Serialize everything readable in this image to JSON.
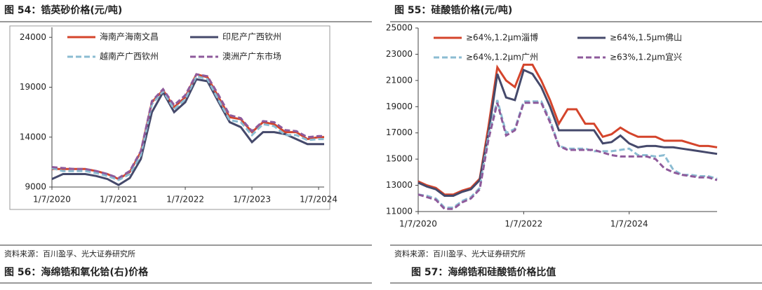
{
  "chart_data": [
    {
      "type": "line",
      "title": "图 54：锆英砂价格(元/吨)",
      "x": [
        "2020-01",
        "2020-03",
        "2020-05",
        "2020-07",
        "2020-09",
        "2020-11",
        "2021-01",
        "2021-03",
        "2021-05",
        "2021-07",
        "2021-09",
        "2021-11",
        "2022-01",
        "2022-03",
        "2022-05",
        "2022-07",
        "2022-09",
        "2022-11",
        "2023-01",
        "2023-03",
        "2023-05",
        "2023-07",
        "2023-09",
        "2023-11",
        "2024-01",
        "2024-02"
      ],
      "xlim": [
        "2020-01",
        "2024-02"
      ],
      "xticks": [
        {
          "value": "2020-01",
          "label": "1/7/2020"
        },
        {
          "value": "2021-01",
          "label": "1/7/2021"
        },
        {
          "value": "2022-01",
          "label": "1/7/2022"
        },
        {
          "value": "2023-01",
          "label": "1/7/2023"
        },
        {
          "value": "2024-01",
          "label": "1/7/2024"
        }
      ],
      "ylim": [
        9000,
        25000
      ],
      "yticks": [
        9000,
        14000,
        19000,
        24000
      ],
      "legend": "upper left",
      "series": [
        {
          "name": "海南产海南文昌",
          "color": "#d4442b",
          "line_style": "solid",
          "values": [
            10800,
            10800,
            10800,
            10800,
            10600,
            10300,
            9800,
            10500,
            12500,
            17500,
            18700,
            17000,
            18000,
            20300,
            20000,
            18000,
            16000,
            15800,
            14500,
            15500,
            15300,
            14500,
            14500,
            13800,
            14000,
            14000
          ]
        },
        {
          "name": "印尼产广西钦州",
          "color": "#45496b",
          "line_style": "solid",
          "values": [
            9800,
            10300,
            10300,
            10300,
            10100,
            9800,
            9200,
            9900,
            11800,
            16500,
            18500,
            16500,
            17500,
            19800,
            19600,
            17500,
            15500,
            15000,
            13500,
            14500,
            14500,
            14300,
            13800,
            13300,
            13300,
            13300
          ]
        },
        {
          "name": "越南产广西钦州",
          "color": "#8bbcd2",
          "line_style": "dashed",
          "values": [
            10900,
            10600,
            10600,
            10600,
            10400,
            10100,
            9700,
            10300,
            12200,
            17300,
            18600,
            16800,
            17800,
            20100,
            19800,
            17700,
            15700,
            15500,
            14200,
            15300,
            15100,
            14200,
            14200,
            13700,
            13800,
            13800
          ]
        },
        {
          "name": "澳洲产广东市场",
          "color": "#8e5a9b",
          "line_style": "dashed",
          "values": [
            11000,
            10900,
            10800,
            10800,
            10600,
            10300,
            9900,
            10600,
            12600,
            17600,
            18800,
            17200,
            18200,
            20300,
            20100,
            18200,
            16200,
            15900,
            14600,
            15600,
            15500,
            14700,
            14600,
            14000,
            14100,
            14100
          ]
        }
      ]
    },
    {
      "type": "line",
      "title": "图 55：硅酸锆价格(元/吨)",
      "x": [
        "2020-01",
        "2020-03",
        "2020-05",
        "2020-07",
        "2020-09",
        "2020-11",
        "2021-01",
        "2021-03",
        "2021-05",
        "2021-07",
        "2021-09",
        "2021-11",
        "2022-01",
        "2022-03",
        "2022-05",
        "2022-07",
        "2022-09",
        "2022-11",
        "2023-01",
        "2023-03",
        "2023-05",
        "2023-07",
        "2023-09",
        "2023-11",
        "2024-01",
        "2024-03",
        "2024-05",
        "2024-07",
        "2024-09",
        "2024-11",
        "2025-01",
        "2025-03",
        "2025-05",
        "2025-07",
        "2025-09"
      ],
      "xlim": [
        "2020-01",
        "2025-09"
      ],
      "xticks": [
        {
          "value": "2020-01",
          "label": "1/7/2020"
        },
        {
          "value": "2022-01",
          "label": "1/7/2022"
        },
        {
          "value": "2024-01",
          "label": "1/7/2024"
        }
      ],
      "ylim": [
        11000,
        25000
      ],
      "yticks": [
        11000,
        13000,
        15000,
        17000,
        19000,
        21000,
        23000,
        25000
      ],
      "legend": "upper left",
      "series": [
        {
          "name": "≥64%,1.2μm淄博",
          "color": "#d4442b",
          "line_style": "solid",
          "values": [
            13300,
            13000,
            12800,
            12300,
            12300,
            12600,
            12800,
            13500,
            17500,
            22000,
            21000,
            20500,
            22200,
            22200,
            21000,
            19500,
            17700,
            18800,
            18800,
            17700,
            17700,
            16700,
            16900,
            17400,
            17000,
            16700,
            16700,
            16700,
            16400,
            16400,
            16400,
            16200,
            16000,
            16000,
            15900
          ]
        },
        {
          "name": "≥64%,1.5μm佛山",
          "color": "#45496b",
          "line_style": "solid",
          "values": [
            13200,
            12900,
            12700,
            12200,
            12200,
            12500,
            12700,
            13400,
            17000,
            21500,
            19700,
            19500,
            21800,
            21500,
            20500,
            19000,
            17200,
            17200,
            17200,
            17200,
            17200,
            16200,
            16300,
            16800,
            16200,
            15900,
            16000,
            16000,
            15900,
            15900,
            15800,
            15700,
            15600,
            15500,
            15400
          ]
        },
        {
          "name": "≥64%,1.2μm广州",
          "color": "#8bbcd2",
          "line_style": "dashed",
          "values": [
            12300,
            12200,
            12000,
            11300,
            11300,
            11800,
            12100,
            12800,
            16800,
            19500,
            17000,
            17300,
            19400,
            19400,
            19400,
            18000,
            16000,
            15800,
            15800,
            15800,
            15600,
            15600,
            15600,
            15700,
            15800,
            15300,
            15300,
            15200,
            15300,
            14200,
            13800,
            13800,
            13700,
            13700,
            13500
          ]
        },
        {
          "name": "≥63%,1.2μm宜兴",
          "color": "#8e5a9b",
          "line_style": "dashed",
          "values": [
            12300,
            12100,
            11900,
            11200,
            11200,
            11700,
            12000,
            12700,
            16500,
            19300,
            16800,
            17200,
            19300,
            19300,
            19300,
            17800,
            16000,
            15700,
            15700,
            15700,
            15700,
            15500,
            15300,
            15200,
            15200,
            15200,
            15200,
            15000,
            14300,
            14000,
            13800,
            13700,
            13600,
            13600,
            13400
          ]
        }
      ]
    }
  ],
  "panels": [
    {
      "source": "资料来源：百川盈孚、光大证券研究所",
      "next_title": "图 56：海绵锆和氧化铪(右)价格"
    },
    {
      "source": "资料来源：百川盈孚、光大证券研究所",
      "next_title": "图 57：海绵锆和硅酸锆价格比值"
    }
  ]
}
